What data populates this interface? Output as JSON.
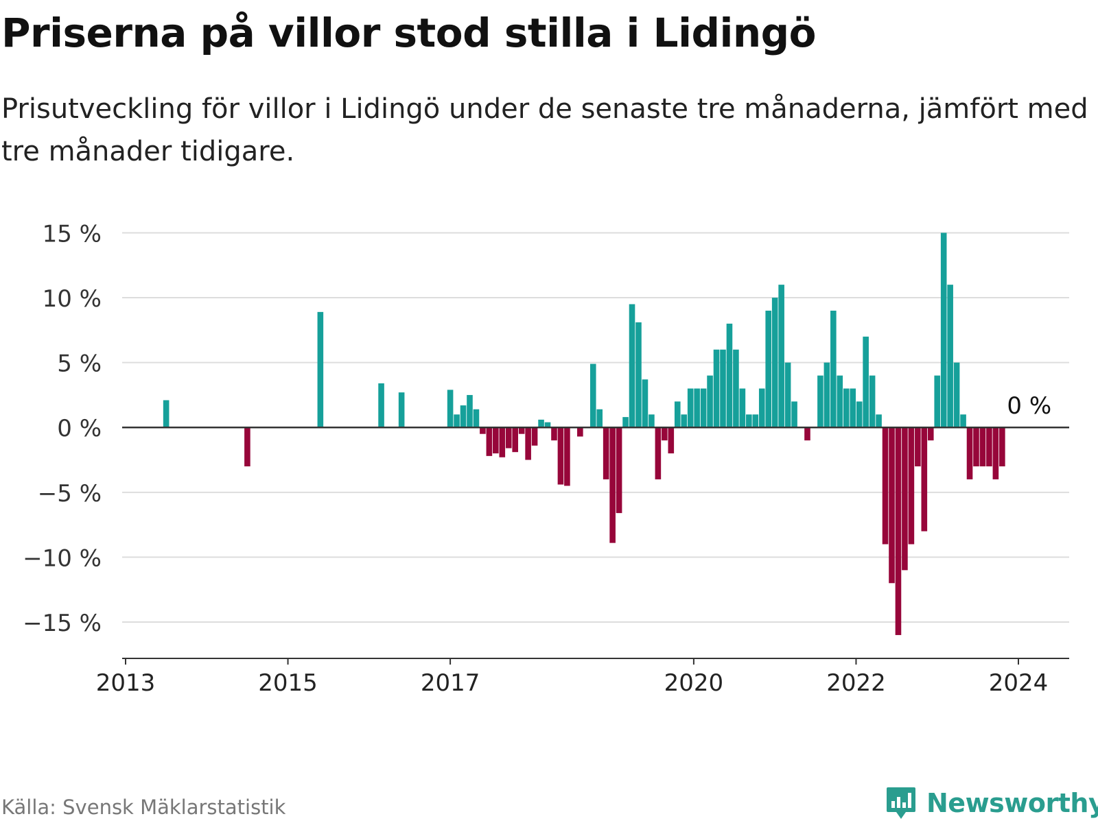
{
  "title": "Priserna på villor stod stilla i Lidingö",
  "subtitle": "Prisutveckling för villor i Lidingö under de senaste tre månaderna, jämfört med tre månader tidigare.",
  "source": "Källa: Svensk Mäklarstatistik",
  "brand": {
    "name": "Newsworthy",
    "icon": "bar-chart-speech-bubble-icon",
    "color": "#2a9d8f"
  },
  "colors": {
    "positive": "#16a09a",
    "negative": "#97063a",
    "grid": "#dddddd",
    "axis": "#333333"
  },
  "chart_data": {
    "type": "bar",
    "title": "Priserna på villor stod stilla i Lidingö",
    "xlabel": "",
    "ylabel": "",
    "ylim": [
      -17.8,
      15.5
    ],
    "yticks": [
      15,
      10,
      5,
      0,
      -5,
      -10,
      -15
    ],
    "ytick_labels": [
      "15 %",
      "10 %",
      "5 %",
      "0 %",
      "−5 %",
      "−10 %",
      "−15 %"
    ],
    "xticks": [
      {
        "year": 2013,
        "label": "2013"
      },
      {
        "year": 2015,
        "label": "2015"
      },
      {
        "year": 2017,
        "label": "2017"
      },
      {
        "year": 2020,
        "label": "2020"
      },
      {
        "year": 2022,
        "label": "2022"
      },
      {
        "year": 2024,
        "label": "2024"
      }
    ],
    "x_domain": [
      2013.0,
      2024.7
    ],
    "unit": "%",
    "last_value_label": "0 %",
    "grid": true,
    "points": [
      {
        "t": 2013.5,
        "v": 2.1
      },
      {
        "t": 2014.5,
        "v": -3.0
      },
      {
        "t": 2015.4,
        "v": 8.9
      },
      {
        "t": 2016.15,
        "v": 3.4
      },
      {
        "t": 2016.4,
        "v": 2.7
      },
      {
        "t": 2017.0,
        "v": 2.9
      },
      {
        "t": 2017.08,
        "v": 1.0
      },
      {
        "t": 2017.16,
        "v": 1.7
      },
      {
        "t": 2017.24,
        "v": 2.5
      },
      {
        "t": 2017.32,
        "v": 1.4
      },
      {
        "t": 2017.4,
        "v": -0.5
      },
      {
        "t": 2017.48,
        "v": -2.2
      },
      {
        "t": 2017.56,
        "v": -2.0
      },
      {
        "t": 2017.64,
        "v": -2.3
      },
      {
        "t": 2017.72,
        "v": -1.6
      },
      {
        "t": 2017.8,
        "v": -1.9
      },
      {
        "t": 2017.88,
        "v": -0.5
      },
      {
        "t": 2017.96,
        "v": -2.5
      },
      {
        "t": 2018.04,
        "v": -1.4
      },
      {
        "t": 2018.12,
        "v": 0.6
      },
      {
        "t": 2018.2,
        "v": 0.4
      },
      {
        "t": 2018.28,
        "v": -1.0
      },
      {
        "t": 2018.36,
        "v": -4.4
      },
      {
        "t": 2018.44,
        "v": -4.5
      },
      {
        "t": 2018.6,
        "v": -0.7
      },
      {
        "t": 2018.76,
        "v": 4.9
      },
      {
        "t": 2018.84,
        "v": 1.4
      },
      {
        "t": 2018.92,
        "v": -4.0
      },
      {
        "t": 2019.0,
        "v": -8.9
      },
      {
        "t": 2019.08,
        "v": -6.6
      },
      {
        "t": 2019.16,
        "v": 0.8
      },
      {
        "t": 2019.24,
        "v": 9.5
      },
      {
        "t": 2019.32,
        "v": 8.1
      },
      {
        "t": 2019.4,
        "v": 3.7
      },
      {
        "t": 2019.48,
        "v": 1.0
      },
      {
        "t": 2019.56,
        "v": -4.0
      },
      {
        "t": 2019.64,
        "v": -1.0
      },
      {
        "t": 2019.72,
        "v": -2.0
      },
      {
        "t": 2019.8,
        "v": 2.0
      },
      {
        "t": 2019.88,
        "v": 1.0
      },
      {
        "t": 2019.96,
        "v": 3.0
      },
      {
        "t": 2020.04,
        "v": 3.0
      },
      {
        "t": 2020.12,
        "v": 3.0
      },
      {
        "t": 2020.2,
        "v": 4.0
      },
      {
        "t": 2020.28,
        "v": 6.0
      },
      {
        "t": 2020.36,
        "v": 6.0
      },
      {
        "t": 2020.44,
        "v": 8.0
      },
      {
        "t": 2020.52,
        "v": 6.0
      },
      {
        "t": 2020.6,
        "v": 3.0
      },
      {
        "t": 2020.68,
        "v": 1.0
      },
      {
        "t": 2020.76,
        "v": 1.0
      },
      {
        "t": 2020.84,
        "v": 3.0
      },
      {
        "t": 2020.92,
        "v": 9.0
      },
      {
        "t": 2021.0,
        "v": 10.0
      },
      {
        "t": 2021.08,
        "v": 11.0
      },
      {
        "t": 2021.16,
        "v": 5.0
      },
      {
        "t": 2021.24,
        "v": 2.0
      },
      {
        "t": 2021.4,
        "v": -1.0
      },
      {
        "t": 2021.56,
        "v": 4.0
      },
      {
        "t": 2021.64,
        "v": 5.0
      },
      {
        "t": 2021.72,
        "v": 9.0
      },
      {
        "t": 2021.8,
        "v": 4.0
      },
      {
        "t": 2021.88,
        "v": 3.0
      },
      {
        "t": 2021.96,
        "v": 3.0
      },
      {
        "t": 2022.04,
        "v": 2.0
      },
      {
        "t": 2022.12,
        "v": 7.0
      },
      {
        "t": 2022.2,
        "v": 4.0
      },
      {
        "t": 2022.28,
        "v": 1.0
      },
      {
        "t": 2022.36,
        "v": -9.0
      },
      {
        "t": 2022.44,
        "v": -12.0
      },
      {
        "t": 2022.52,
        "v": -16.0
      },
      {
        "t": 2022.6,
        "v": -11.0
      },
      {
        "t": 2022.68,
        "v": -9.0
      },
      {
        "t": 2022.76,
        "v": -3.0
      },
      {
        "t": 2022.84,
        "v": -8.0
      },
      {
        "t": 2022.92,
        "v": -1.0
      },
      {
        "t": 2023.0,
        "v": 4.0
      },
      {
        "t": 2023.08,
        "v": 15.0
      },
      {
        "t": 2023.16,
        "v": 11.0
      },
      {
        "t": 2023.24,
        "v": 5.0
      },
      {
        "t": 2023.32,
        "v": 1.0
      },
      {
        "t": 2023.4,
        "v": -4.0
      },
      {
        "t": 2023.48,
        "v": -3.0
      },
      {
        "t": 2023.56,
        "v": -3.0
      },
      {
        "t": 2023.64,
        "v": -3.0
      },
      {
        "t": 2023.72,
        "v": -4.0
      },
      {
        "t": 2023.8,
        "v": -3.0
      },
      {
        "t": 2023.88,
        "v": 0.0
      }
    ]
  }
}
